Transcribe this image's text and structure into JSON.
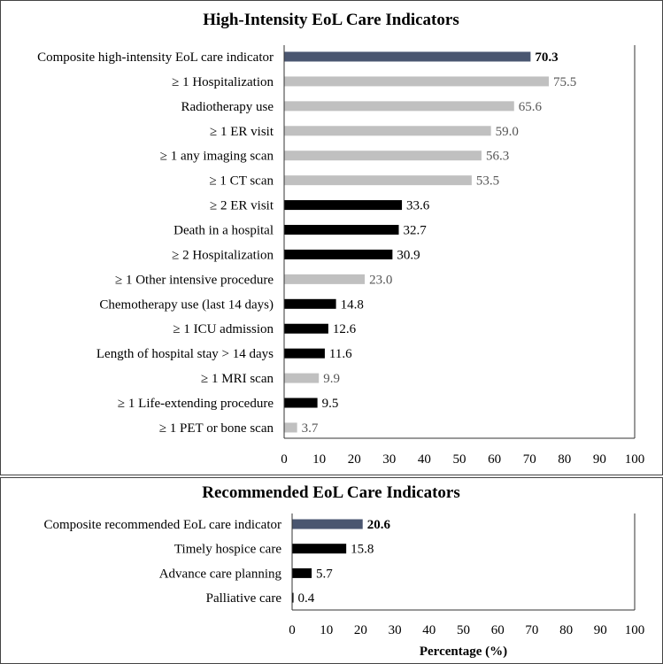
{
  "chart_data": [
    {
      "type": "bar",
      "orientation": "horizontal",
      "title": "High-Intensity EoL Care Indicators",
      "xlabel": "",
      "ylabel": "",
      "xlim": [
        0,
        100
      ],
      "xticks": [
        0,
        10,
        20,
        30,
        40,
        50,
        60,
        70,
        80,
        90,
        100
      ],
      "categories": [
        "Composite high-intensity EoL care indicator",
        "≥ 1 Hospitalization",
        "Radiotherapy use",
        "≥ 1 ER visit",
        "≥ 1 any imaging scan",
        "≥ 1 CT scan",
        "≥ 2 ER visit",
        "Death in a hospital",
        "≥ 2 Hospitalization",
        "≥ 1 Other intensive procedure",
        "Chemotherapy use (last 14 days)",
        "≥ 1 ICU admission",
        "Length of hospital stay > 14 days",
        "≥ 1 MRI scan",
        "≥ 1 Life-extending procedure",
        "≥ 1 PET or bone scan"
      ],
      "values": [
        70.3,
        75.5,
        65.6,
        59.0,
        56.3,
        53.5,
        33.6,
        32.7,
        30.9,
        23.0,
        14.8,
        12.6,
        11.6,
        9.9,
        9.5,
        3.7
      ],
      "value_labels": [
        "70.3",
        "75.5",
        "65.6",
        "59.0",
        "56.3",
        "53.5",
        "33.6",
        "32.7",
        "30.9",
        "23.0",
        "14.8",
        "12.6",
        "11.6",
        "9.9",
        "9.5",
        "3.7"
      ],
      "styles": [
        "composite",
        "light",
        "light",
        "light",
        "light",
        "light",
        "dark",
        "dark",
        "dark",
        "light",
        "dark",
        "dark",
        "dark",
        "light",
        "dark",
        "light"
      ]
    },
    {
      "type": "bar",
      "orientation": "horizontal",
      "title": "Recommended EoL Care Indicators",
      "xlabel": "Percentage (%)",
      "ylabel": "",
      "xlim": [
        0,
        100
      ],
      "xticks": [
        0,
        10,
        20,
        30,
        40,
        50,
        60,
        70,
        80,
        90,
        100
      ],
      "categories": [
        "Composite recommended EoL care indicator",
        "Timely hospice care",
        "Advance care planning",
        "Palliative care"
      ],
      "values": [
        20.6,
        15.8,
        5.7,
        0.4
      ],
      "value_labels": [
        "20.6",
        "15.8",
        "5.7",
        "0.4"
      ],
      "styles": [
        "composite",
        "dark",
        "dark",
        "dark"
      ]
    }
  ],
  "colors": {
    "composite": "#4a5670",
    "dark": "#000000",
    "light": "#c0c0c0",
    "light_text": "#555555",
    "axis": "#333333"
  }
}
